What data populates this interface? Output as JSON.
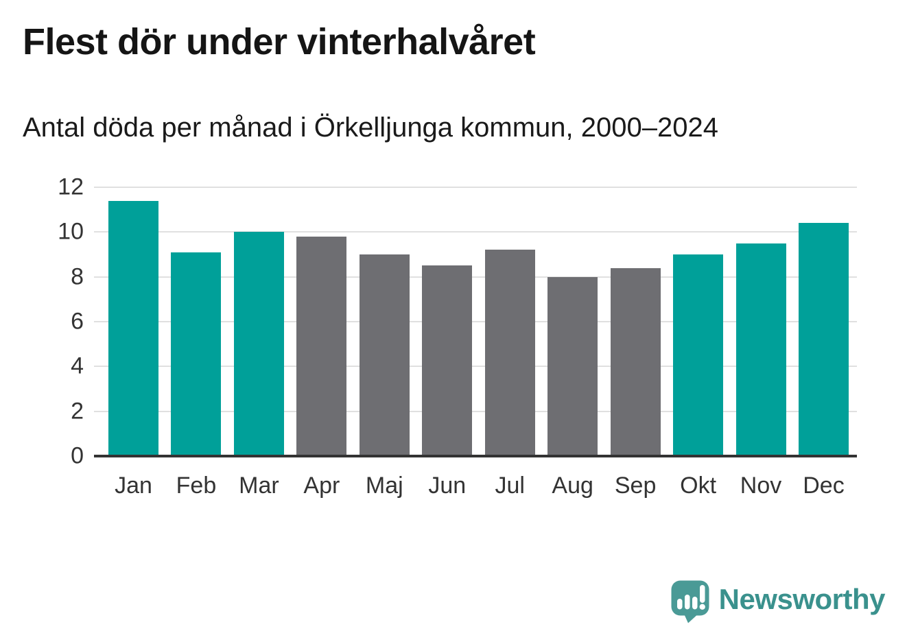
{
  "chart_data": {
    "type": "bar",
    "title": "Flest dör under vinterhalvåret",
    "subtitle": "Antal döda per månad i Örkelljunga kommun, 2000–2024",
    "categories": [
      "Jan",
      "Feb",
      "Mar",
      "Apr",
      "Maj",
      "Jun",
      "Jul",
      "Aug",
      "Sep",
      "Okt",
      "Nov",
      "Dec"
    ],
    "values": [
      11.4,
      9.1,
      10.0,
      9.8,
      9.0,
      8.5,
      9.2,
      8.0,
      8.4,
      9.0,
      9.5,
      10.4
    ],
    "bar_seasons": [
      "winter",
      "winter",
      "winter",
      "summer",
      "summer",
      "summer",
      "summer",
      "summer",
      "summer",
      "winter",
      "winter",
      "winter"
    ],
    "bar_palette": {
      "winter": "#00a099",
      "summer": "#6e6e72"
    },
    "xlabel": "",
    "ylabel": "",
    "ylim": [
      0,
      12
    ],
    "yticks": [
      0,
      2,
      4,
      6,
      8,
      10,
      12
    ],
    "grid": true,
    "gridline_color": "#e0e0e0",
    "axis_line_color": "#333333",
    "tick_label_color": "#333333",
    "legend": "none"
  },
  "footer": {
    "brand": "Newsworthy",
    "brand_color": "#3a918d",
    "logo_color": "#4a9a96",
    "logo_icon": "speech-bubble-bar-chart-icon"
  }
}
